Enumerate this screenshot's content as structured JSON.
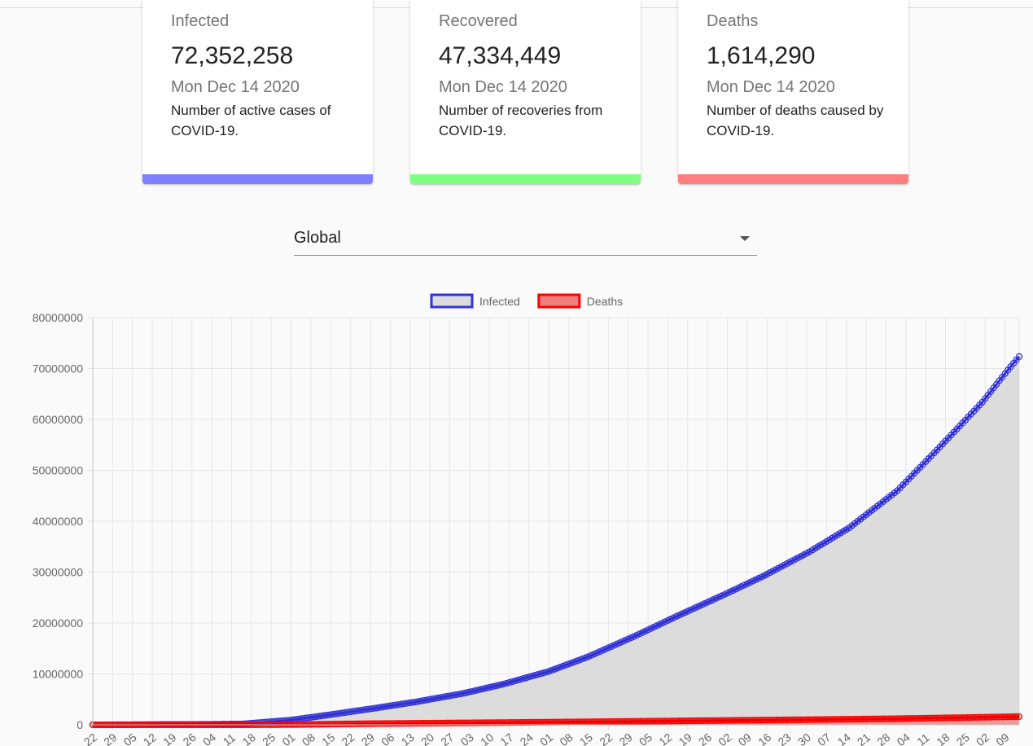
{
  "cards": [
    {
      "title": "Infected",
      "value": "72,352,258",
      "date": "Mon Dec 14 2020",
      "description": "Number of active cases of COVID-19.",
      "accent_color": "#7f7fff"
    },
    {
      "title": "Recovered",
      "value": "47,334,449",
      "date": "Mon Dec 14 2020",
      "description": "Number of recoveries from COVID-19.",
      "accent_color": "#7fff7f"
    },
    {
      "title": "Deaths",
      "value": "1,614,290",
      "date": "Mon Dec 14 2020",
      "description": "Number of deaths caused by COVID-19.",
      "accent_color": "#ff7f7f"
    }
  ],
  "country_select": {
    "value": "Global",
    "icon": "arrow-drop-down-icon"
  },
  "chart_data": {
    "type": "line",
    "legend": [
      "Infected",
      "Deaths"
    ],
    "legend_position": "top",
    "grid": true,
    "ylim": [
      0,
      80000000
    ],
    "y_ticks": [
      "80000000",
      "70000000",
      "60000000",
      "50000000",
      "40000000",
      "30000000",
      "20000000",
      "10000000",
      "0"
    ],
    "x_tick_labels": [
      "22",
      "29",
      "05",
      "12",
      "19",
      "26",
      "04",
      "11",
      "18",
      "25",
      "01",
      "08",
      "15",
      "22",
      "29",
      "06",
      "13",
      "20",
      "27",
      "03",
      "10",
      "17",
      "24",
      "01",
      "08",
      "15",
      "22",
      "29",
      "05",
      "12",
      "19",
      "26",
      "02",
      "09",
      "16",
      "23",
      "30",
      "07",
      "14",
      "21",
      "28",
      "04",
      "11",
      "18",
      "25",
      "02",
      "09"
    ],
    "x_start": "2020-01-22",
    "x_end": "2020-12-14",
    "series": [
      {
        "name": "Infected",
        "border_color": "#3333dd",
        "fill_color": "#dcdcdc",
        "points": [
          [
            "2020-01-22",
            555
          ],
          [
            "2020-02-01",
            12000
          ],
          [
            "2020-02-15",
            69000
          ],
          [
            "2020-03-01",
            88000
          ],
          [
            "2020-03-15",
            170000
          ],
          [
            "2020-04-01",
            930000
          ],
          [
            "2020-04-15",
            2000000
          ],
          [
            "2020-05-01",
            3300000
          ],
          [
            "2020-05-15",
            4500000
          ],
          [
            "2020-06-01",
            6200000
          ],
          [
            "2020-06-15",
            8000000
          ],
          [
            "2020-07-01",
            10500000
          ],
          [
            "2020-07-15",
            13400000
          ],
          [
            "2020-08-01",
            17600000
          ],
          [
            "2020-08-15",
            21300000
          ],
          [
            "2020-09-01",
            25600000
          ],
          [
            "2020-09-15",
            29300000
          ],
          [
            "2020-10-01",
            34000000
          ],
          [
            "2020-10-15",
            38700000
          ],
          [
            "2020-11-01",
            46000000
          ],
          [
            "2020-11-15",
            54000000
          ],
          [
            "2020-12-01",
            63400000
          ],
          [
            "2020-12-10",
            69700000
          ],
          [
            "2020-12-14",
            72352258
          ]
        ]
      },
      {
        "name": "Deaths",
        "border_color": "#ff0000",
        "fill_color": "#f08080",
        "points": [
          [
            "2020-01-22",
            17
          ],
          [
            "2020-02-15",
            1600
          ],
          [
            "2020-03-15",
            6500
          ],
          [
            "2020-04-01",
            47000
          ],
          [
            "2020-04-15",
            135000
          ],
          [
            "2020-05-01",
            235000
          ],
          [
            "2020-06-01",
            375000
          ],
          [
            "2020-07-01",
            515000
          ],
          [
            "2020-08-01",
            685000
          ],
          [
            "2020-09-01",
            855000
          ],
          [
            "2020-10-01",
            1015000
          ],
          [
            "2020-11-01",
            1200000
          ],
          [
            "2020-12-01",
            1480000
          ],
          [
            "2020-12-14",
            1614290
          ]
        ]
      }
    ]
  }
}
